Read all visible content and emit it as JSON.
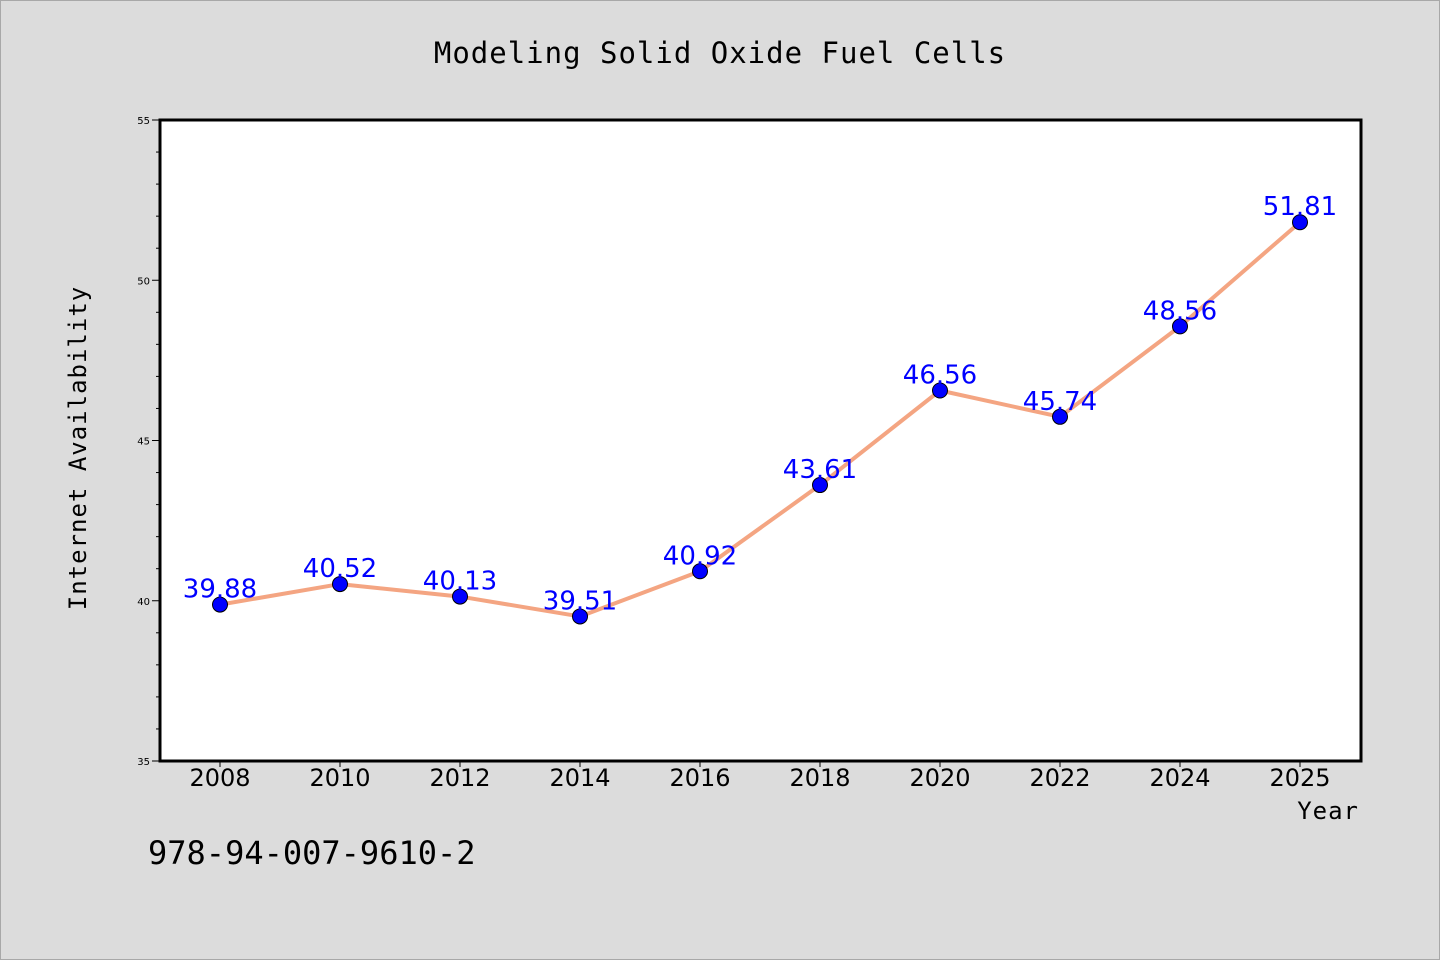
{
  "chart_data": {
    "type": "line",
    "title": "Modeling Solid Oxide Fuel Cells",
    "xlabel": "Year",
    "ylabel": "Internet Availability",
    "annotation": "978-94-007-9610-2",
    "x": [
      2008,
      2010,
      2012,
      2014,
      2016,
      2018,
      2020,
      2022,
      2024,
      2025
    ],
    "x_tick_labels": [
      "2008",
      "2010",
      "2012",
      "2014",
      "2016",
      "2018",
      "2020",
      "2022",
      "2024",
      "2025"
    ],
    "values": [
      39.88,
      40.52,
      40.13,
      39.51,
      40.92,
      43.61,
      46.56,
      45.74,
      48.56,
      51.81
    ],
    "data_labels": [
      "39.88",
      "40.52",
      "40.13",
      "39.51",
      "40.92",
      "43.61",
      "46.56",
      "45.74",
      "48.56",
      "51.81"
    ],
    "ylim": [
      35,
      55
    ],
    "y_ticks": [
      35,
      40,
      45,
      50,
      55
    ],
    "y_tick_labels": [
      "35",
      "40",
      "45",
      "50",
      "55"
    ],
    "grid": false,
    "line_color": "#f4a582",
    "marker_color": "#0000ff",
    "label_color": "#0000ff"
  }
}
